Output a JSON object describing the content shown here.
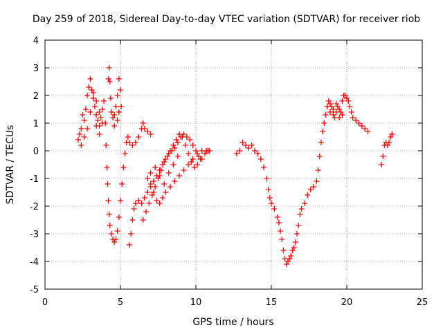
{
  "chart_data": {
    "type": "scatter",
    "title": "Day 259 of 2018, Sidereal Day-to-day VTEC variation (SDTVAR) for receiver riob",
    "xlabel": "GPS time / hours",
    "ylabel": "SDTVAR / TECUs",
    "xlim": [
      0,
      25
    ],
    "ylim": [
      -5,
      4
    ],
    "xticks": [
      "0",
      "5",
      "10",
      "15",
      "20",
      "25"
    ],
    "yticks": [
      "-5",
      "-4",
      "-3",
      "-2",
      "-1",
      "0",
      "1",
      "2",
      "3",
      "4"
    ],
    "grid": true,
    "marker": "+",
    "color": "#ff0000",
    "series": [
      {
        "name": "SDTVAR",
        "points": [
          [
            2.2,
            0.4
          ],
          [
            2.3,
            0.6
          ],
          [
            2.4,
            0.8
          ],
          [
            2.5,
            1.3
          ],
          [
            2.6,
            1.1
          ],
          [
            2.7,
            1.5
          ],
          [
            2.8,
            2.0
          ],
          [
            2.9,
            2.3
          ],
          [
            3.0,
            2.6
          ],
          [
            3.1,
            2.2
          ],
          [
            3.2,
            1.9
          ],
          [
            3.3,
            1.6
          ],
          [
            3.4,
            1.3
          ],
          [
            3.5,
            1.1
          ],
          [
            3.6,
            0.9
          ],
          [
            3.7,
            1.2
          ],
          [
            3.8,
            1.5
          ],
          [
            3.9,
            1.8
          ],
          [
            4.0,
            1.0
          ],
          [
            4.05,
            0.2
          ],
          [
            4.1,
            -0.6
          ],
          [
            4.15,
            -1.2
          ],
          [
            4.2,
            -1.8
          ],
          [
            4.25,
            -2.3
          ],
          [
            4.3,
            -2.7
          ],
          [
            4.4,
            -3.0
          ],
          [
            4.5,
            -3.2
          ],
          [
            4.6,
            -3.3
          ],
          [
            4.7,
            -3.2
          ],
          [
            4.8,
            -2.9
          ],
          [
            4.9,
            -2.4
          ],
          [
            5.0,
            -1.8
          ],
          [
            5.1,
            -1.2
          ],
          [
            5.2,
            -0.6
          ],
          [
            5.3,
            -0.1
          ],
          [
            5.4,
            0.3
          ],
          [
            5.5,
            0.5
          ],
          [
            5.6,
            0.3
          ],
          [
            5.8,
            0.2
          ],
          [
            6.0,
            0.3
          ],
          [
            6.2,
            0.5
          ],
          [
            6.4,
            0.8
          ],
          [
            6.5,
            1.0
          ],
          [
            6.6,
            0.8
          ],
          [
            6.8,
            0.7
          ],
          [
            7.0,
            0.6
          ],
          [
            4.2,
            2.6
          ],
          [
            4.25,
            3.0
          ],
          [
            4.3,
            2.5
          ],
          [
            4.35,
            1.9
          ],
          [
            4.4,
            1.4
          ],
          [
            4.5,
            1.2
          ],
          [
            4.6,
            1.3
          ],
          [
            4.7,
            1.6
          ],
          [
            4.8,
            2.0
          ],
          [
            4.9,
            2.6
          ],
          [
            5.0,
            2.2
          ],
          [
            5.05,
            1.6
          ],
          [
            4.9,
            1.4
          ],
          [
            4.8,
            1.1
          ],
          [
            4.6,
            0.9
          ],
          [
            2.4,
            0.2
          ],
          [
            2.6,
            0.5
          ],
          [
            2.8,
            0.8
          ],
          [
            3.0,
            1.4
          ],
          [
            3.2,
            2.1
          ],
          [
            3.4,
            1.8
          ],
          [
            3.6,
            1.4
          ],
          [
            3.8,
            1.0
          ],
          [
            3.6,
            0.6
          ],
          [
            3.4,
            0.9
          ],
          [
            5.6,
            -3.4
          ],
          [
            5.7,
            -3.0
          ],
          [
            5.8,
            -2.5
          ],
          [
            5.9,
            -2.1
          ],
          [
            6.0,
            -1.9
          ],
          [
            6.2,
            -1.8
          ],
          [
            6.4,
            -1.9
          ],
          [
            6.6,
            -1.7
          ],
          [
            6.8,
            -1.5
          ],
          [
            7.0,
            -1.3
          ],
          [
            7.2,
            -1.1
          ],
          [
            7.4,
            -0.9
          ],
          [
            7.6,
            -0.7
          ],
          [
            7.8,
            -0.5
          ],
          [
            8.0,
            -0.3
          ],
          [
            8.2,
            -0.1
          ],
          [
            8.4,
            0.0
          ],
          [
            8.6,
            0.1
          ],
          [
            8.8,
            0.3
          ],
          [
            9.0,
            0.5
          ],
          [
            9.2,
            0.6
          ],
          [
            9.4,
            0.5
          ],
          [
            9.6,
            0.4
          ],
          [
            9.8,
            0.2
          ],
          [
            10.0,
            0.0
          ],
          [
            10.2,
            -0.2
          ],
          [
            10.4,
            -0.3
          ],
          [
            10.6,
            -0.1
          ],
          [
            10.8,
            0.0
          ],
          [
            6.5,
            -2.5
          ],
          [
            6.7,
            -2.2
          ],
          [
            6.9,
            -1.9
          ],
          [
            7.1,
            -1.6
          ],
          [
            7.3,
            -1.3
          ],
          [
            7.5,
            -1.0
          ],
          [
            7.7,
            -0.7
          ],
          [
            7.9,
            -0.4
          ],
          [
            8.1,
            -0.2
          ],
          [
            8.3,
            0.0
          ],
          [
            8.5,
            0.2
          ],
          [
            8.7,
            0.4
          ],
          [
            8.9,
            0.6
          ],
          [
            9.1,
            0.5
          ],
          [
            9.3,
            0.2
          ],
          [
            9.5,
            -0.1
          ],
          [
            9.7,
            -0.4
          ],
          [
            9.9,
            -0.6
          ],
          [
            10.1,
            -0.5
          ],
          [
            10.3,
            -0.3
          ],
          [
            6.8,
            -1.0
          ],
          [
            7.0,
            -1.2
          ],
          [
            7.2,
            -1.5
          ],
          [
            7.4,
            -1.8
          ],
          [
            7.6,
            -1.9
          ],
          [
            7.8,
            -1.7
          ],
          [
            8.0,
            -1.5
          ],
          [
            8.3,
            -1.3
          ],
          [
            8.6,
            -1.1
          ],
          [
            8.9,
            -0.9
          ],
          [
            9.2,
            -0.7
          ],
          [
            9.5,
            -0.5
          ],
          [
            9.8,
            -0.3
          ],
          [
            10.1,
            -0.1
          ],
          [
            10.4,
            0.0
          ],
          [
            10.7,
            0.0
          ],
          [
            10.9,
            0.0
          ],
          [
            7.0,
            -0.8
          ],
          [
            7.3,
            -0.6
          ],
          [
            7.6,
            -0.9
          ],
          [
            7.9,
            -1.2
          ],
          [
            8.2,
            -0.8
          ],
          [
            8.5,
            -0.5
          ],
          [
            8.8,
            -0.2
          ],
          [
            12.7,
            -0.1
          ],
          [
            12.9,
            0.0
          ],
          [
            13.1,
            0.3
          ],
          [
            13.3,
            0.2
          ],
          [
            13.5,
            0.1
          ],
          [
            13.7,
            0.2
          ],
          [
            13.9,
            0.0
          ],
          [
            14.1,
            -0.1
          ],
          [
            14.3,
            -0.3
          ],
          [
            14.5,
            -0.6
          ],
          [
            14.7,
            -1.0
          ],
          [
            14.8,
            -1.4
          ],
          [
            14.9,
            -1.7
          ],
          [
            15.0,
            -1.9
          ],
          [
            15.2,
            -2.1
          ],
          [
            15.4,
            -2.4
          ],
          [
            15.5,
            -2.6
          ],
          [
            15.6,
            -2.9
          ],
          [
            15.7,
            -3.2
          ],
          [
            15.8,
            -3.6
          ],
          [
            15.9,
            -3.9
          ],
          [
            16.0,
            -4.1
          ],
          [
            16.1,
            -4.0
          ],
          [
            16.2,
            -3.9
          ],
          [
            16.3,
            -3.8
          ],
          [
            16.4,
            -3.6
          ],
          [
            16.5,
            -3.5
          ],
          [
            16.6,
            -3.3
          ],
          [
            16.7,
            -3.0
          ],
          [
            16.8,
            -2.7
          ],
          [
            16.9,
            -2.3
          ],
          [
            17.0,
            -2.1
          ],
          [
            17.2,
            -1.9
          ],
          [
            17.4,
            -1.6
          ],
          [
            17.6,
            -1.4
          ],
          [
            17.8,
            -1.3
          ],
          [
            18.0,
            -1.1
          ],
          [
            18.1,
            -0.7
          ],
          [
            18.2,
            -0.2
          ],
          [
            18.3,
            0.3
          ],
          [
            18.4,
            0.7
          ],
          [
            18.5,
            1.0
          ],
          [
            18.6,
            1.3
          ],
          [
            18.7,
            1.6
          ],
          [
            18.8,
            1.8
          ],
          [
            18.9,
            1.7
          ],
          [
            19.0,
            1.6
          ],
          [
            19.1,
            1.3
          ],
          [
            19.2,
            1.2
          ],
          [
            19.3,
            1.4
          ],
          [
            19.4,
            1.6
          ],
          [
            19.5,
            1.2
          ],
          [
            19.6,
            1.4
          ],
          [
            19.7,
            1.8
          ],
          [
            19.8,
            2.0
          ],
          [
            19.9,
            2.0
          ],
          [
            20.0,
            1.9
          ],
          [
            20.1,
            1.8
          ],
          [
            20.2,
            1.6
          ],
          [
            20.3,
            1.4
          ],
          [
            20.4,
            1.2
          ],
          [
            20.6,
            1.1
          ],
          [
            20.8,
            1.0
          ],
          [
            21.0,
            0.9
          ],
          [
            21.2,
            0.8
          ],
          [
            21.4,
            0.7
          ],
          [
            18.9,
            1.4
          ],
          [
            19.1,
            1.5
          ],
          [
            19.3,
            1.7
          ],
          [
            19.5,
            1.5
          ],
          [
            19.7,
            1.3
          ],
          [
            22.3,
            -0.5
          ],
          [
            22.4,
            -0.2
          ],
          [
            22.5,
            0.2
          ],
          [
            22.6,
            0.3
          ],
          [
            22.7,
            0.2
          ],
          [
            22.8,
            0.3
          ],
          [
            22.9,
            0.5
          ],
          [
            23.0,
            0.6
          ]
        ]
      }
    ]
  }
}
